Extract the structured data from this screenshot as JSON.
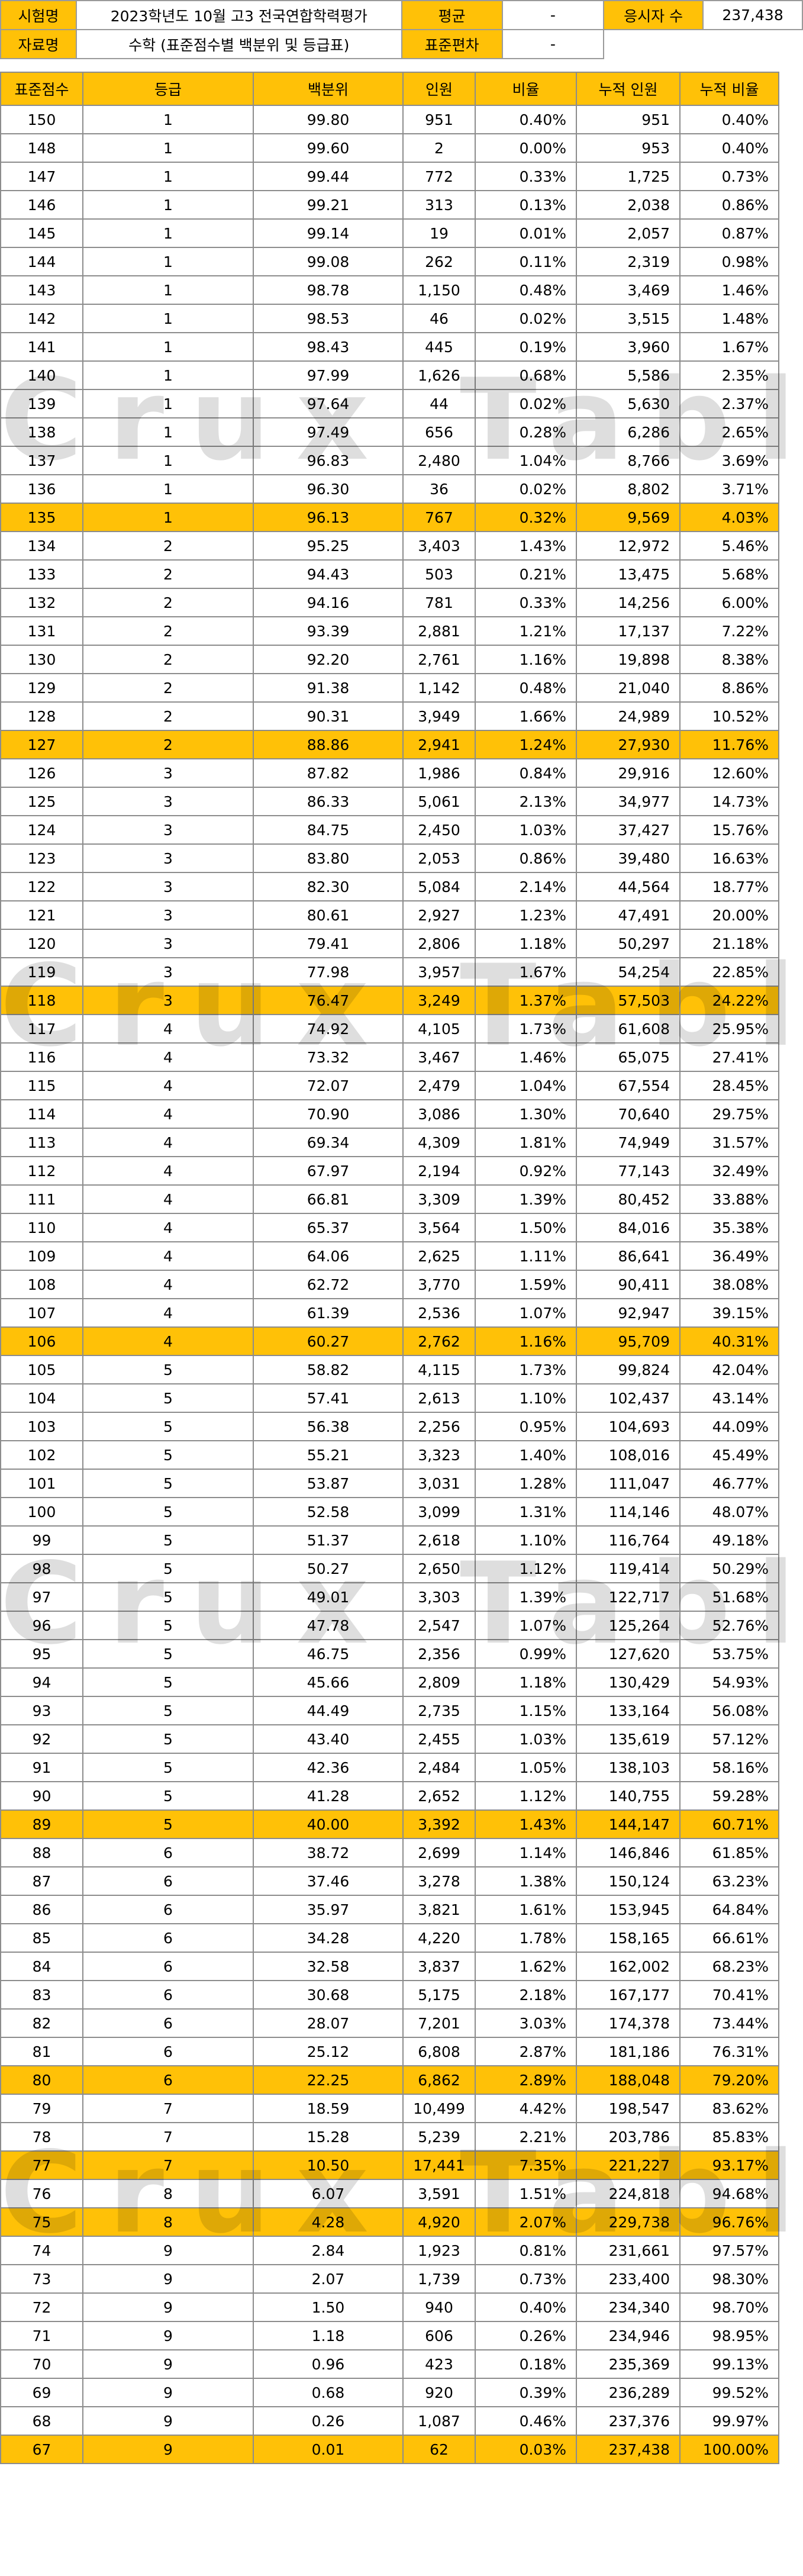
{
  "info": {
    "exam_label": "시험명",
    "exam_value": "2023학년도 10월 고3 전국연합학력평가",
    "avg_label": "평균",
    "avg_value": "-",
    "examinees_label": "응시자 수",
    "examinees_value": "237,438",
    "data_label": "자료명",
    "data_value": "수학 (표준점수별 백분위 및 등급표)",
    "sd_label": "표준편차",
    "sd_value": "-"
  },
  "table": {
    "headers": [
      "표준점수",
      "등급",
      "백분위",
      "인원",
      "비율",
      "누적 인원",
      "누적 비율"
    ],
    "rows": [
      [
        "150",
        "1",
        "99.80",
        "951",
        "0.40%",
        "951",
        "0.40%"
      ],
      [
        "148",
        "1",
        "99.60",
        "2",
        "0.00%",
        "953",
        "0.40%"
      ],
      [
        "147",
        "1",
        "99.44",
        "772",
        "0.33%",
        "1,725",
        "0.73%"
      ],
      [
        "146",
        "1",
        "99.21",
        "313",
        "0.13%",
        "2,038",
        "0.86%"
      ],
      [
        "145",
        "1",
        "99.14",
        "19",
        "0.01%",
        "2,057",
        "0.87%"
      ],
      [
        "144",
        "1",
        "99.08",
        "262",
        "0.11%",
        "2,319",
        "0.98%"
      ],
      [
        "143",
        "1",
        "98.78",
        "1,150",
        "0.48%",
        "3,469",
        "1.46%"
      ],
      [
        "142",
        "1",
        "98.53",
        "46",
        "0.02%",
        "3,515",
        "1.48%"
      ],
      [
        "141",
        "1",
        "98.43",
        "445",
        "0.19%",
        "3,960",
        "1.67%"
      ],
      [
        "140",
        "1",
        "97.99",
        "1,626",
        "0.68%",
        "5,586",
        "2.35%"
      ],
      [
        "139",
        "1",
        "97.64",
        "44",
        "0.02%",
        "5,630",
        "2.37%"
      ],
      [
        "138",
        "1",
        "97.49",
        "656",
        "0.28%",
        "6,286",
        "2.65%"
      ],
      [
        "137",
        "1",
        "96.83",
        "2,480",
        "1.04%",
        "8,766",
        "3.69%"
      ],
      [
        "136",
        "1",
        "96.30",
        "36",
        "0.02%",
        "8,802",
        "3.71%"
      ],
      [
        "135",
        "1",
        "96.13",
        "767",
        "0.32%",
        "9,569",
        "4.03%"
      ],
      [
        "134",
        "2",
        "95.25",
        "3,403",
        "1.43%",
        "12,972",
        "5.46%"
      ],
      [
        "133",
        "2",
        "94.43",
        "503",
        "0.21%",
        "13,475",
        "5.68%"
      ],
      [
        "132",
        "2",
        "94.16",
        "781",
        "0.33%",
        "14,256",
        "6.00%"
      ],
      [
        "131",
        "2",
        "93.39",
        "2,881",
        "1.21%",
        "17,137",
        "7.22%"
      ],
      [
        "130",
        "2",
        "92.20",
        "2,761",
        "1.16%",
        "19,898",
        "8.38%"
      ],
      [
        "129",
        "2",
        "91.38",
        "1,142",
        "0.48%",
        "21,040",
        "8.86%"
      ],
      [
        "128",
        "2",
        "90.31",
        "3,949",
        "1.66%",
        "24,989",
        "10.52%"
      ],
      [
        "127",
        "2",
        "88.86",
        "2,941",
        "1.24%",
        "27,930",
        "11.76%"
      ],
      [
        "126",
        "3",
        "87.82",
        "1,986",
        "0.84%",
        "29,916",
        "12.60%"
      ],
      [
        "125",
        "3",
        "86.33",
        "5,061",
        "2.13%",
        "34,977",
        "14.73%"
      ],
      [
        "124",
        "3",
        "84.75",
        "2,450",
        "1.03%",
        "37,427",
        "15.76%"
      ],
      [
        "123",
        "3",
        "83.80",
        "2,053",
        "0.86%",
        "39,480",
        "16.63%"
      ],
      [
        "122",
        "3",
        "82.30",
        "5,084",
        "2.14%",
        "44,564",
        "18.77%"
      ],
      [
        "121",
        "3",
        "80.61",
        "2,927",
        "1.23%",
        "47,491",
        "20.00%"
      ],
      [
        "120",
        "3",
        "79.41",
        "2,806",
        "1.18%",
        "50,297",
        "21.18%"
      ],
      [
        "119",
        "3",
        "77.98",
        "3,957",
        "1.67%",
        "54,254",
        "22.85%"
      ],
      [
        "118",
        "3",
        "76.47",
        "3,249",
        "1.37%",
        "57,503",
        "24.22%"
      ],
      [
        "117",
        "4",
        "74.92",
        "4,105",
        "1.73%",
        "61,608",
        "25.95%"
      ],
      [
        "116",
        "4",
        "73.32",
        "3,467",
        "1.46%",
        "65,075",
        "27.41%"
      ],
      [
        "115",
        "4",
        "72.07",
        "2,479",
        "1.04%",
        "67,554",
        "28.45%"
      ],
      [
        "114",
        "4",
        "70.90",
        "3,086",
        "1.30%",
        "70,640",
        "29.75%"
      ],
      [
        "113",
        "4",
        "69.34",
        "4,309",
        "1.81%",
        "74,949",
        "31.57%"
      ],
      [
        "112",
        "4",
        "67.97",
        "2,194",
        "0.92%",
        "77,143",
        "32.49%"
      ],
      [
        "111",
        "4",
        "66.81",
        "3,309",
        "1.39%",
        "80,452",
        "33.88%"
      ],
      [
        "110",
        "4",
        "65.37",
        "3,564",
        "1.50%",
        "84,016",
        "35.38%"
      ],
      [
        "109",
        "4",
        "64.06",
        "2,625",
        "1.11%",
        "86,641",
        "36.49%"
      ],
      [
        "108",
        "4",
        "62.72",
        "3,770",
        "1.59%",
        "90,411",
        "38.08%"
      ],
      [
        "107",
        "4",
        "61.39",
        "2,536",
        "1.07%",
        "92,947",
        "39.15%"
      ],
      [
        "106",
        "4",
        "60.27",
        "2,762",
        "1.16%",
        "95,709",
        "40.31%"
      ],
      [
        "105",
        "5",
        "58.82",
        "4,115",
        "1.73%",
        "99,824",
        "42.04%"
      ],
      [
        "104",
        "5",
        "57.41",
        "2,613",
        "1.10%",
        "102,437",
        "43.14%"
      ],
      [
        "103",
        "5",
        "56.38",
        "2,256",
        "0.95%",
        "104,693",
        "44.09%"
      ],
      [
        "102",
        "5",
        "55.21",
        "3,323",
        "1.40%",
        "108,016",
        "45.49%"
      ],
      [
        "101",
        "5",
        "53.87",
        "3,031",
        "1.28%",
        "111,047",
        "46.77%"
      ],
      [
        "100",
        "5",
        "52.58",
        "3,099",
        "1.31%",
        "114,146",
        "48.07%"
      ],
      [
        "99",
        "5",
        "51.37",
        "2,618",
        "1.10%",
        "116,764",
        "49.18%"
      ],
      [
        "98",
        "5",
        "50.27",
        "2,650",
        "1.12%",
        "119,414",
        "50.29%"
      ],
      [
        "97",
        "5",
        "49.01",
        "3,303",
        "1.39%",
        "122,717",
        "51.68%"
      ],
      [
        "96",
        "5",
        "47.78",
        "2,547",
        "1.07%",
        "125,264",
        "52.76%"
      ],
      [
        "95",
        "5",
        "46.75",
        "2,356",
        "0.99%",
        "127,620",
        "53.75%"
      ],
      [
        "94",
        "5",
        "45.66",
        "2,809",
        "1.18%",
        "130,429",
        "54.93%"
      ],
      [
        "93",
        "5",
        "44.49",
        "2,735",
        "1.15%",
        "133,164",
        "56.08%"
      ],
      [
        "92",
        "5",
        "43.40",
        "2,455",
        "1.03%",
        "135,619",
        "57.12%"
      ],
      [
        "91",
        "5",
        "42.36",
        "2,484",
        "1.05%",
        "138,103",
        "58.16%"
      ],
      [
        "90",
        "5",
        "41.28",
        "2,652",
        "1.12%",
        "140,755",
        "59.28%"
      ],
      [
        "89",
        "5",
        "40.00",
        "3,392",
        "1.43%",
        "144,147",
        "60.71%"
      ],
      [
        "88",
        "6",
        "38.72",
        "2,699",
        "1.14%",
        "146,846",
        "61.85%"
      ],
      [
        "87",
        "6",
        "37.46",
        "3,278",
        "1.38%",
        "150,124",
        "63.23%"
      ],
      [
        "86",
        "6",
        "35.97",
        "3,821",
        "1.61%",
        "153,945",
        "64.84%"
      ],
      [
        "85",
        "6",
        "34.28",
        "4,220",
        "1.78%",
        "158,165",
        "66.61%"
      ],
      [
        "84",
        "6",
        "32.58",
        "3,837",
        "1.62%",
        "162,002",
        "68.23%"
      ],
      [
        "83",
        "6",
        "30.68",
        "5,175",
        "2.18%",
        "167,177",
        "70.41%"
      ],
      [
        "82",
        "6",
        "28.07",
        "7,201",
        "3.03%",
        "174,378",
        "73.44%"
      ],
      [
        "81",
        "6",
        "25.12",
        "6,808",
        "2.87%",
        "181,186",
        "76.31%"
      ],
      [
        "80",
        "6",
        "22.25",
        "6,862",
        "2.89%",
        "188,048",
        "79.20%"
      ],
      [
        "79",
        "7",
        "18.59",
        "10,499",
        "4.42%",
        "198,547",
        "83.62%"
      ],
      [
        "78",
        "7",
        "15.28",
        "5,239",
        "2.21%",
        "203,786",
        "85.83%"
      ],
      [
        "77",
        "7",
        "10.50",
        "17,441",
        "7.35%",
        "221,227",
        "93.17%"
      ],
      [
        "76",
        "8",
        "6.07",
        "3,591",
        "1.51%",
        "224,818",
        "94.68%"
      ],
      [
        "75",
        "8",
        "4.28",
        "4,920",
        "2.07%",
        "229,738",
        "96.76%"
      ],
      [
        "74",
        "9",
        "2.84",
        "1,923",
        "0.81%",
        "231,661",
        "97.57%"
      ],
      [
        "73",
        "9",
        "2.07",
        "1,739",
        "0.73%",
        "233,400",
        "98.30%"
      ],
      [
        "72",
        "9",
        "1.50",
        "940",
        "0.40%",
        "234,340",
        "98.70%"
      ],
      [
        "71",
        "9",
        "1.18",
        "606",
        "0.26%",
        "234,946",
        "98.95%"
      ],
      [
        "70",
        "9",
        "0.96",
        "423",
        "0.18%",
        "235,369",
        "99.13%"
      ],
      [
        "69",
        "9",
        "0.68",
        "920",
        "0.39%",
        "236,289",
        "99.52%"
      ],
      [
        "68",
        "9",
        "0.26",
        "1,087",
        "0.46%",
        "237,376",
        "99.97%"
      ],
      [
        "67",
        "9",
        "0.01",
        "62",
        "0.03%",
        "237,438",
        "100.00%"
      ]
    ],
    "highlight_scores": [
      "135",
      "127",
      "118",
      "106",
      "89",
      "80",
      "77",
      "75",
      "67"
    ],
    "highlight_color": "#ffc107"
  },
  "watermark": "Crux Table"
}
